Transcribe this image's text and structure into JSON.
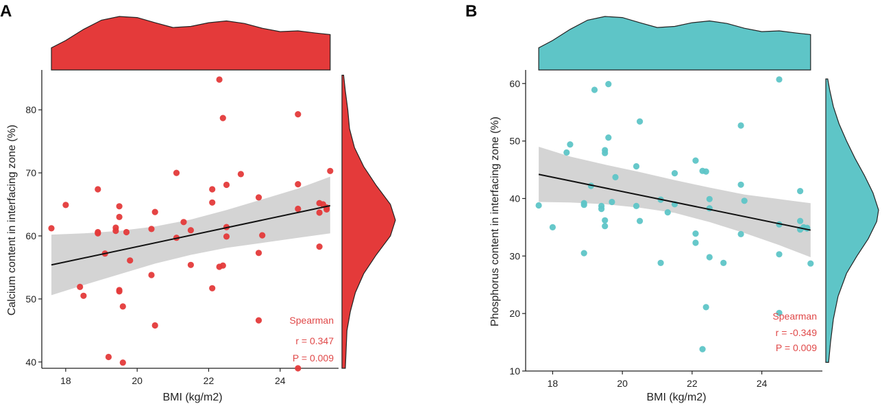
{
  "figure": {
    "panel_a_label": "A",
    "panel_b_label": "B"
  },
  "chart_data": [
    {
      "id": "A",
      "type": "scatter",
      "title": "",
      "xlabel": "BMI (kg/m2)",
      "ylabel": "Calcium content in interfacing zone (%)",
      "xlim": [
        17.6,
        25.5
      ],
      "ylim": [
        39,
        86
      ],
      "xticks": [
        18,
        20,
        22,
        24
      ],
      "yticks": [
        40,
        50,
        60,
        70,
        80
      ],
      "color": "#e43a3a",
      "points": [
        [
          17.6,
          61.2
        ],
        [
          18.0,
          64.9
        ],
        [
          18.4,
          51.9
        ],
        [
          18.5,
          50.5
        ],
        [
          18.9,
          67.4
        ],
        [
          18.9,
          60.4
        ],
        [
          18.9,
          60.6
        ],
        [
          19.1,
          57.2
        ],
        [
          19.2,
          40.8
        ],
        [
          19.4,
          61.3
        ],
        [
          19.4,
          60.8
        ],
        [
          19.5,
          64.7
        ],
        [
          19.5,
          63.0
        ],
        [
          19.5,
          51.4
        ],
        [
          19.5,
          51.2
        ],
        [
          19.6,
          48.8
        ],
        [
          19.6,
          39.9
        ],
        [
          19.7,
          60.6
        ],
        [
          19.8,
          56.1
        ],
        [
          20.4,
          61.1
        ],
        [
          20.4,
          53.8
        ],
        [
          20.5,
          63.8
        ],
        [
          20.5,
          45.8
        ],
        [
          21.1,
          70.0
        ],
        [
          21.1,
          59.7
        ],
        [
          21.3,
          62.2
        ],
        [
          21.5,
          60.9
        ],
        [
          21.5,
          55.4
        ],
        [
          22.1,
          67.4
        ],
        [
          22.1,
          65.3
        ],
        [
          22.1,
          51.7
        ],
        [
          22.3,
          84.8
        ],
        [
          22.3,
          55.1
        ],
        [
          22.4,
          55.3
        ],
        [
          22.4,
          78.7
        ],
        [
          22.5,
          68.1
        ],
        [
          22.5,
          61.4
        ],
        [
          22.5,
          59.9
        ],
        [
          22.9,
          69.8
        ],
        [
          23.4,
          66.1
        ],
        [
          23.4,
          57.3
        ],
        [
          23.4,
          46.6
        ],
        [
          23.5,
          60.1
        ],
        [
          24.5,
          79.3
        ],
        [
          24.5,
          68.2
        ],
        [
          24.5,
          64.3
        ],
        [
          24.5,
          39.0
        ],
        [
          25.1,
          65.2
        ],
        [
          25.1,
          63.7
        ],
        [
          25.1,
          58.3
        ],
        [
          25.2,
          65.0
        ],
        [
          25.3,
          64.2
        ],
        [
          25.3,
          64.5
        ],
        [
          25.4,
          70.3
        ]
      ],
      "fit_line": {
        "x": [
          17.6,
          25.4
        ],
        "y": [
          55.4,
          64.8
        ]
      },
      "confidence_band": {
        "x": [
          17.6,
          18.5,
          19.5,
          20.5,
          21.5,
          22.5,
          23.5,
          24.5,
          25.4
        ],
        "upper": [
          60.2,
          60.4,
          60.8,
          61.5,
          62.6,
          64.1,
          65.8,
          67.5,
          69.4
        ],
        "lower": [
          50.6,
          52.2,
          53.9,
          55.6,
          57.0,
          58.1,
          58.9,
          59.7,
          60.4
        ]
      },
      "top_density": {
        "x": [
          17.6,
          18.0,
          18.5,
          19.0,
          19.5,
          20.0,
          20.5,
          21.0,
          21.5,
          22.0,
          22.5,
          23.0,
          23.5,
          24.0,
          24.5,
          25.0,
          25.4
        ],
        "density": [
          0.06,
          0.08,
          0.11,
          0.135,
          0.145,
          0.142,
          0.128,
          0.115,
          0.118,
          0.128,
          0.133,
          0.126,
          0.113,
          0.104,
          0.106,
          0.1,
          0.096
        ]
      },
      "right_density": {
        "y": [
          39,
          42,
          45,
          48,
          51,
          54,
          57,
          60,
          62.5,
          65,
          68,
          71,
          74,
          77,
          80,
          83,
          85.5
        ],
        "density": [
          0.004,
          0.005,
          0.006,
          0.01,
          0.016,
          0.026,
          0.041,
          0.058,
          0.064,
          0.058,
          0.041,
          0.026,
          0.015,
          0.009,
          0.007,
          0.004,
          0.002
        ]
      },
      "annotation": [
        "Spearman",
        "r = 0.347",
        "P = 0.009"
      ],
      "annotation_color": "#e04848"
    },
    {
      "id": "B",
      "type": "scatter",
      "title": "",
      "xlabel": "BMI (kg/m2)",
      "ylabel": "Phosphorus content in interfacing zone (%)",
      "xlim": [
        17.5,
        25.6
      ],
      "ylim": [
        10,
        62
      ],
      "xticks": [
        18,
        20,
        22,
        24
      ],
      "yticks": [
        10,
        20,
        30,
        40,
        50,
        60
      ],
      "color": "#5ec5c7",
      "points": [
        [
          17.6,
          38.8
        ],
        [
          18.0,
          35.0
        ],
        [
          18.4,
          48.0
        ],
        [
          18.5,
          49.4
        ],
        [
          18.9,
          39.2
        ],
        [
          18.9,
          38.9
        ],
        [
          18.9,
          30.5
        ],
        [
          19.1,
          42.2
        ],
        [
          19.2,
          58.9
        ],
        [
          19.4,
          38.7
        ],
        [
          19.4,
          38.2
        ],
        [
          19.5,
          48.4
        ],
        [
          19.5,
          47.9
        ],
        [
          19.5,
          36.2
        ],
        [
          19.5,
          35.2
        ],
        [
          19.6,
          59.9
        ],
        [
          19.6,
          50.6
        ],
        [
          19.7,
          39.4
        ],
        [
          19.8,
          43.7
        ],
        [
          20.4,
          45.6
        ],
        [
          20.4,
          38.7
        ],
        [
          20.5,
          53.4
        ],
        [
          20.5,
          36.1
        ],
        [
          21.1,
          39.8
        ],
        [
          21.1,
          28.8
        ],
        [
          21.3,
          37.6
        ],
        [
          21.5,
          44.4
        ],
        [
          21.5,
          39.0
        ],
        [
          22.1,
          46.6
        ],
        [
          22.1,
          33.9
        ],
        [
          22.1,
          32.3
        ],
        [
          22.3,
          13.8
        ],
        [
          22.3,
          44.8
        ],
        [
          22.4,
          44.7
        ],
        [
          22.4,
          21.1
        ],
        [
          22.5,
          39.9
        ],
        [
          22.5,
          38.3
        ],
        [
          22.5,
          29.8
        ],
        [
          22.9,
          28.8
        ],
        [
          23.4,
          52.7
        ],
        [
          23.4,
          42.4
        ],
        [
          23.4,
          33.8
        ],
        [
          23.5,
          39.6
        ],
        [
          24.5,
          60.7
        ],
        [
          24.5,
          35.5
        ],
        [
          24.5,
          30.3
        ],
        [
          24.5,
          20.1
        ],
        [
          25.1,
          41.3
        ],
        [
          25.1,
          36.1
        ],
        [
          25.1,
          34.6
        ],
        [
          25.2,
          35.0
        ],
        [
          25.3,
          34.9
        ],
        [
          25.3,
          34.8
        ],
        [
          25.4,
          28.7
        ]
      ],
      "fit_line": {
        "x": [
          17.6,
          25.4
        ],
        "y": [
          44.2,
          34.5
        ]
      },
      "confidence_band": {
        "x": [
          17.6,
          18.5,
          19.5,
          20.5,
          21.5,
          22.5,
          23.5,
          24.5,
          25.4
        ],
        "upper": [
          49.0,
          47.3,
          45.9,
          44.6,
          43.2,
          41.9,
          40.7,
          39.9,
          39.2
        ],
        "lower": [
          39.4,
          39.3,
          39.0,
          38.4,
          37.5,
          35.9,
          34.0,
          31.9,
          29.8
        ]
      },
      "top_density": {
        "x": [
          17.6,
          18.0,
          18.5,
          19.0,
          19.5,
          20.0,
          20.5,
          21.0,
          21.5,
          22.0,
          22.5,
          23.0,
          23.5,
          24.0,
          24.5,
          25.0,
          25.4
        ],
        "density": [
          0.06,
          0.08,
          0.11,
          0.135,
          0.145,
          0.142,
          0.128,
          0.115,
          0.118,
          0.128,
          0.133,
          0.126,
          0.113,
          0.104,
          0.106,
          0.1,
          0.096
        ]
      },
      "right_density": {
        "y": [
          11.5,
          15,
          19,
          23,
          27,
          30,
          33,
          36,
          38,
          41,
          44,
          47,
          50,
          53,
          56,
          59,
          60.8
        ],
        "density": [
          0.003,
          0.005,
          0.008,
          0.013,
          0.022,
          0.033,
          0.045,
          0.054,
          0.056,
          0.05,
          0.041,
          0.031,
          0.022,
          0.014,
          0.008,
          0.004,
          0.002
        ]
      },
      "annotation": [
        "Spearman",
        "r = -0.349",
        "P = 0.009"
      ],
      "annotation_color": "#e04848"
    }
  ]
}
